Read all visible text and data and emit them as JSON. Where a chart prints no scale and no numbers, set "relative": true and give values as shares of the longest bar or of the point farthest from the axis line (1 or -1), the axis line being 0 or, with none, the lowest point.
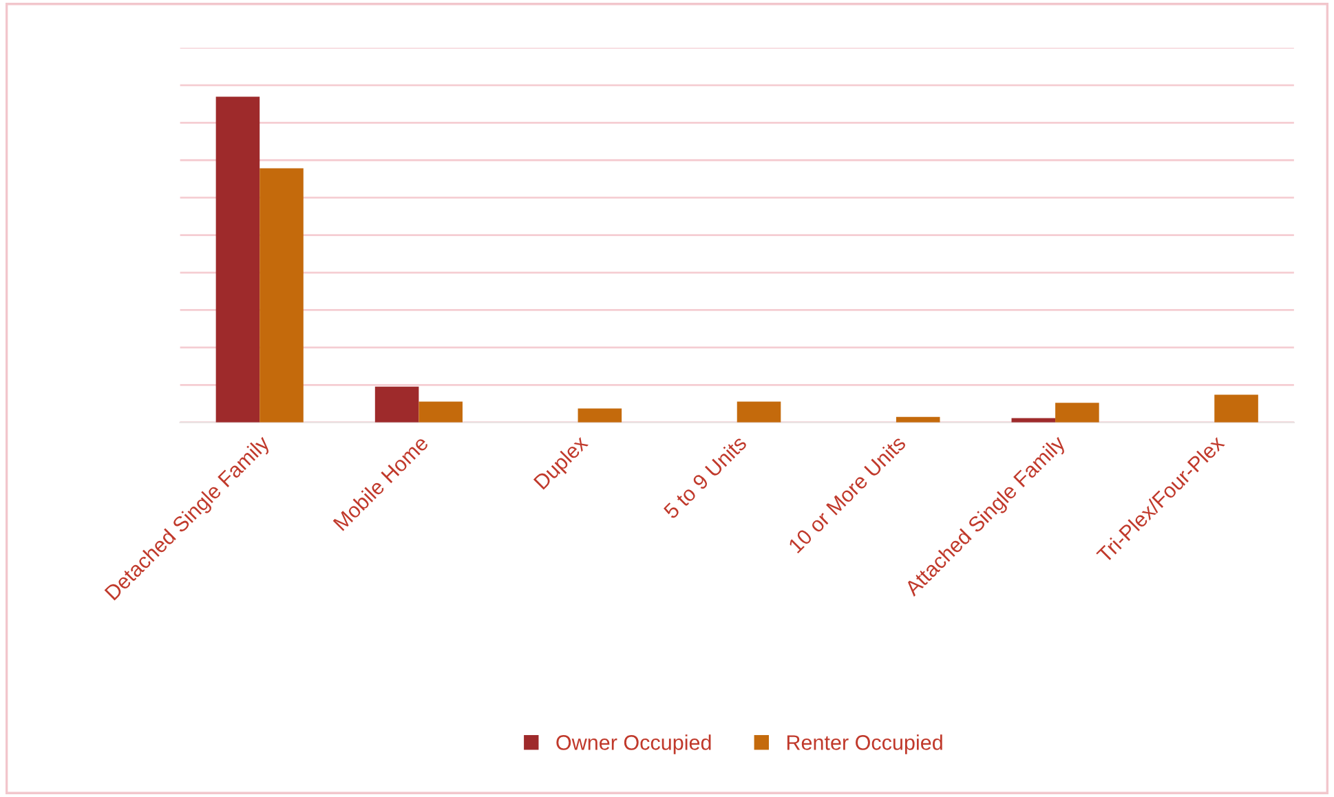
{
  "chart_data": {
    "type": "bar",
    "relative": true,
    "categories": [
      "Detached Single Family",
      "Mobile Home",
      "Duplex",
      "5 to 9 Units",
      "10 or More Units",
      "Attached Single Family",
      "Tri-Plex/Four-Plex"
    ],
    "series": [
      {
        "name": "Owner Occupied",
        "color": "#9e2a2b",
        "values": [
          1.0,
          0.11,
          null,
          null,
          null,
          0.013,
          null
        ]
      },
      {
        "name": "Renter Occupied",
        "color": "#c46a0c",
        "values": [
          0.78,
          0.064,
          0.043,
          0.064,
          0.017,
          0.06,
          0.085
        ]
      }
    ],
    "grid": "y",
    "legend": "bottom"
  }
}
